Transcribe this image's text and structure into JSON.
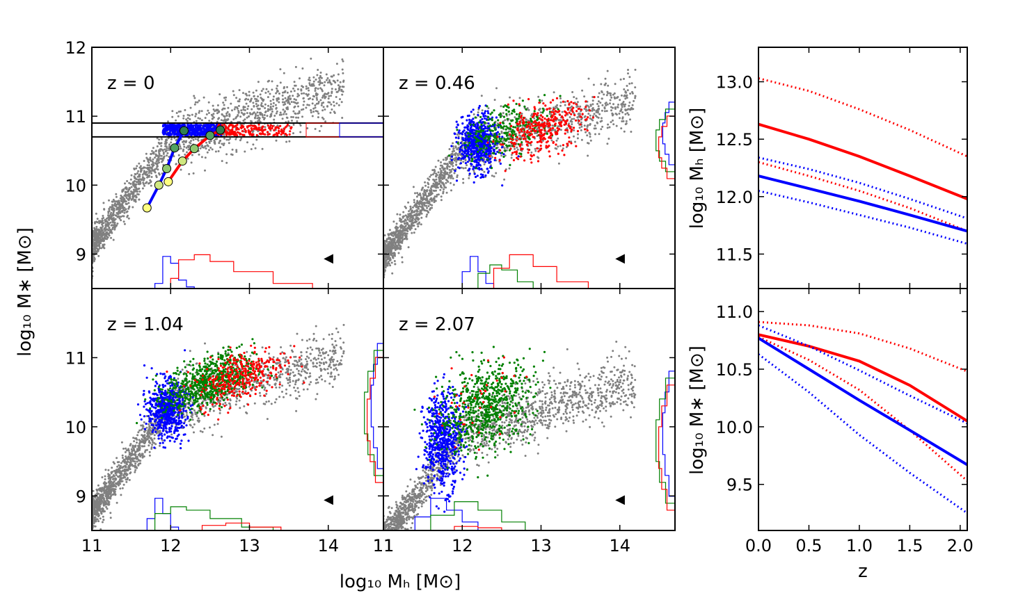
{
  "figure": {
    "left_xlabel": "log₁₀ Mₕ [M⊙]",
    "left_ylabel": "log₁₀ M∗ [M⊙]",
    "right_top_ylabel": "log₁₀ Mₕ [M⊙]",
    "right_bottom_ylabel": "log₁₀ M∗ [M⊙]",
    "right_xlabel": "z"
  },
  "chart_data": [
    {
      "type": "scatter",
      "panel": "z=0",
      "annotation": "z = 0",
      "xlim": [
        11,
        14.7
      ],
      "ylim": [
        8.5,
        12
      ],
      "xticks": [
        "11",
        "12",
        "13",
        "14"
      ],
      "yticks": [
        "9",
        "10",
        "11",
        "12"
      ],
      "selection_band": [
        10.7,
        10.9
      ],
      "series": [
        {
          "color": "#808080",
          "cloud": "stellar-halo relation",
          "approx_points": [
            [
              11.0,
              8.8
            ],
            [
              11.5,
              9.6
            ],
            [
              12.0,
              10.4
            ],
            [
              12.5,
              10.8
            ],
            [
              13.0,
              11.0
            ],
            [
              13.5,
              11.2
            ],
            [
              14.0,
              11.4
            ]
          ]
        },
        {
          "color": "#0000ff",
          "cloud": "band, low halo mass",
          "x_range": [
            11.9,
            12.6
          ],
          "y_range": [
            10.72,
            10.88
          ]
        },
        {
          "color": "#ff0000",
          "cloud": "band, high halo mass",
          "x_range": [
            12.6,
            13.5
          ],
          "y_range": [
            10.72,
            10.88
          ]
        }
      ],
      "tracks": [
        {
          "color": "#0000ff",
          "points": [
            [
              11.7,
              9.67
            ],
            [
              11.85,
              10.0
            ],
            [
              11.95,
              10.24
            ],
            [
              12.05,
              10.54
            ],
            [
              12.17,
              10.79
            ]
          ]
        },
        {
          "color": "#ff0000",
          "points": [
            [
              11.97,
              10.05
            ],
            [
              12.15,
              10.35
            ],
            [
              12.3,
              10.53
            ],
            [
              12.5,
              10.72
            ],
            [
              12.63,
              10.8
            ]
          ]
        }
      ],
      "track_marker_colors": [
        "#ffff80",
        "#d0e880",
        "#90c870",
        "#50a060",
        "#308050"
      ],
      "x_hists": [
        {
          "color": "#0000ff",
          "edges": [
            11.8,
            11.9,
            12.0,
            12.1,
            12.2,
            12.3
          ],
          "heights": [
            0.15,
            0.95,
            0.75,
            0.25,
            0.05
          ]
        },
        {
          "color": "#ff0000",
          "edges": [
            12.0,
            12.1,
            12.3,
            12.5,
            12.8,
            13.3,
            13.8
          ],
          "heights": [
            0.3,
            0.85,
            1.0,
            0.8,
            0.5,
            0.15
          ]
        }
      ],
      "marker": "◀"
    },
    {
      "type": "scatter",
      "panel": "z=0.46",
      "annotation": "z = 0.46",
      "xlim": [
        11,
        14.7
      ],
      "ylim": [
        8.5,
        12
      ],
      "xticks": [
        "11",
        "12",
        "13",
        "14"
      ],
      "series": [
        {
          "color": "#808080",
          "cloud": "stellar-halo relation"
        },
        {
          "color": "#0000ff",
          "center": [
            12.2,
            10.6
          ]
        },
        {
          "color": "#008000",
          "center": [
            12.55,
            10.8
          ]
        },
        {
          "color": "#ff0000",
          "center": [
            13.0,
            10.8
          ]
        }
      ],
      "x_hists": [
        {
          "color": "#0000ff",
          "edges": [
            12.0,
            12.1,
            12.2,
            12.3,
            12.4
          ],
          "heights": [
            0.5,
            0.95,
            0.5,
            0.15
          ]
        },
        {
          "color": "#008000",
          "edges": [
            12.2,
            12.35,
            12.5,
            12.7,
            12.9
          ],
          "heights": [
            0.45,
            0.7,
            0.55,
            0.2
          ]
        },
        {
          "color": "#ff0000",
          "edges": [
            12.4,
            12.6,
            12.9,
            13.2,
            13.6
          ],
          "heights": [
            0.6,
            1.0,
            0.65,
            0.2
          ]
        }
      ],
      "marker": "◀"
    },
    {
      "type": "scatter",
      "panel": "z=1.04",
      "annotation": "z = 1.04",
      "xlim": [
        11,
        14.7
      ],
      "ylim": [
        8.5,
        12
      ],
      "xticks": [
        "11",
        "12",
        "13",
        "14"
      ],
      "yticks": [
        "9",
        "10",
        "11"
      ],
      "series": [
        {
          "color": "#808080",
          "cloud": "stellar-halo relation"
        },
        {
          "color": "#0000ff",
          "center": [
            11.95,
            10.25
          ]
        },
        {
          "color": "#008000",
          "center": [
            12.5,
            10.65
          ]
        },
        {
          "color": "#ff0000",
          "center": [
            12.9,
            10.75
          ]
        }
      ],
      "marker": "◀"
    },
    {
      "type": "scatter",
      "panel": "z=2.07",
      "annotation": "z = 2.07",
      "xlim": [
        11,
        14.7
      ],
      "ylim": [
        8.5,
        12
      ],
      "xticks": [
        "11",
        "12",
        "13",
        "14"
      ],
      "series": [
        {
          "color": "#808080",
          "cloud": "stellar-halo relation"
        },
        {
          "color": "#0000ff",
          "center": [
            11.75,
            9.8
          ]
        },
        {
          "color": "#008000",
          "center": [
            12.3,
            10.3
          ]
        },
        {
          "color": "#ff0000",
          "center": [
            12.2,
            10.4
          ]
        }
      ],
      "marker": "◀"
    },
    {
      "type": "line",
      "panel": "Mh vs z",
      "xlim": [
        0,
        2.07
      ],
      "ylim": [
        11.2,
        13.3
      ],
      "xticks": [
        "0.0",
        "0.5",
        "1.0",
        "1.5",
        "2.0"
      ],
      "yticks": [
        "11.5",
        "12.0",
        "12.5",
        "13.0"
      ],
      "series": [
        {
          "color": "#ff0000",
          "style": "solid",
          "x": [
            0,
            0.5,
            1.0,
            1.5,
            2.07
          ],
          "y": [
            12.63,
            12.5,
            12.35,
            12.18,
            11.98
          ]
        },
        {
          "color": "#ff0000",
          "style": "dotted",
          "x": [
            0,
            0.5,
            1.0,
            1.5,
            2.07
          ],
          "y": [
            13.03,
            12.92,
            12.76,
            12.58,
            12.35
          ]
        },
        {
          "color": "#ff0000",
          "style": "dotted",
          "x": [
            0,
            0.5,
            1.0,
            1.5,
            2.07
          ],
          "y": [
            12.3,
            12.18,
            12.05,
            11.9,
            11.7
          ]
        },
        {
          "color": "#0000ff",
          "style": "solid",
          "x": [
            0,
            0.5,
            1.0,
            1.5,
            2.07
          ],
          "y": [
            12.18,
            12.07,
            11.96,
            11.84,
            11.7
          ]
        },
        {
          "color": "#0000ff",
          "style": "dotted",
          "x": [
            0,
            0.5,
            1.0,
            1.5,
            2.07
          ],
          "y": [
            12.34,
            12.24,
            12.12,
            11.98,
            11.81
          ]
        },
        {
          "color": "#0000ff",
          "style": "dotted",
          "x": [
            0,
            0.5,
            1.0,
            1.5,
            2.07
          ],
          "y": [
            12.05,
            11.95,
            11.84,
            11.73,
            11.59
          ]
        }
      ]
    },
    {
      "type": "line",
      "panel": "M* vs z",
      "xlim": [
        0,
        2.07
      ],
      "ylim": [
        9.1,
        11.2
      ],
      "xticks": [
        "0.0",
        "0.5",
        "1.0",
        "1.5",
        "2.0"
      ],
      "yticks": [
        "9.5",
        "10.0",
        "10.5",
        "11.0"
      ],
      "series": [
        {
          "color": "#ff0000",
          "style": "solid",
          "x": [
            0,
            0.5,
            1.0,
            1.5,
            2.07
          ],
          "y": [
            10.8,
            10.7,
            10.57,
            10.36,
            10.05
          ]
        },
        {
          "color": "#ff0000",
          "style": "dotted",
          "x": [
            0,
            0.5,
            1.0,
            1.5,
            2.07
          ],
          "y": [
            10.91,
            10.88,
            10.81,
            10.68,
            10.48
          ]
        },
        {
          "color": "#ff0000",
          "style": "dotted",
          "x": [
            0,
            0.5,
            1.0,
            1.5,
            2.07
          ],
          "y": [
            10.78,
            10.58,
            10.32,
            9.97,
            9.53
          ]
        },
        {
          "color": "#0000ff",
          "style": "solid",
          "x": [
            0,
            0.5,
            1.0,
            1.5,
            2.07
          ],
          "y": [
            10.77,
            10.5,
            10.23,
            9.97,
            9.67
          ]
        },
        {
          "color": "#0000ff",
          "style": "dotted",
          "x": [
            0,
            0.5,
            1.0,
            1.5,
            2.07
          ],
          "y": [
            10.88,
            10.7,
            10.49,
            10.27,
            10.03
          ]
        },
        {
          "color": "#0000ff",
          "style": "dotted",
          "x": [
            0,
            0.5,
            1.0,
            1.5,
            2.07
          ],
          "y": [
            10.63,
            10.3,
            9.93,
            9.6,
            9.25
          ]
        }
      ]
    }
  ]
}
